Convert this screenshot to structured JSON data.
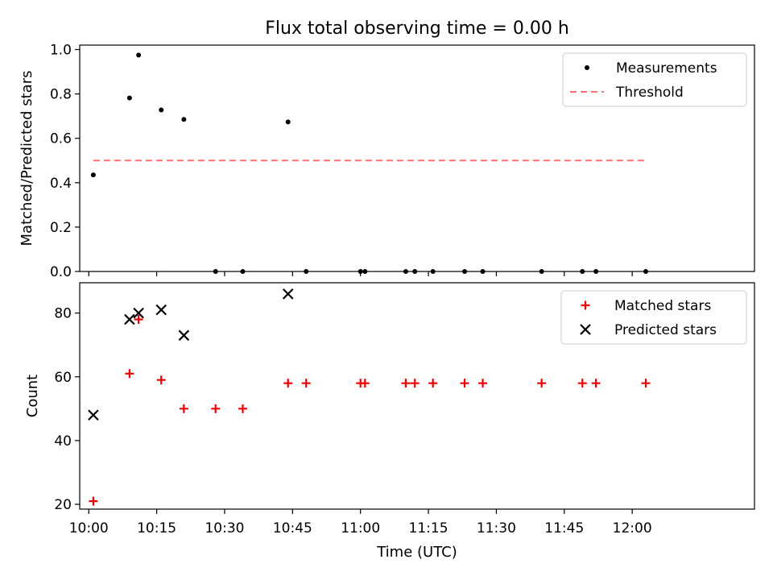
{
  "chart_data": {
    "title": "Flux total observing time = 0.00 h",
    "xlabel": "Time (UTC)",
    "x_ticks": [
      "10:00",
      "10:15",
      "10:30",
      "10:45",
      "11:00",
      "11:15",
      "11:30",
      "11:45",
      "12:00"
    ],
    "xlim": [
      "09:58",
      "12:27"
    ],
    "panels": [
      {
        "type": "scatter",
        "ylabel": "Matched/Predicted stars",
        "ylim": [
          0,
          1.02
        ],
        "y_ticks": [
          "0.0",
          "0.2",
          "0.4",
          "0.6",
          "0.8",
          "1.0"
        ],
        "legend": {
          "position": "top-right",
          "entries": [
            "Measurements",
            "Threshold"
          ]
        },
        "series": [
          {
            "name": "Measurements",
            "type": "scatter",
            "marker": "dot",
            "color": "#000000",
            "points": [
              [
                "10:01",
                0.435
              ],
              [
                "10:09",
                0.782
              ],
              [
                "10:11",
                0.975
              ],
              [
                "10:16",
                0.728
              ],
              [
                "10:21",
                0.685
              ],
              [
                "10:28",
                0.0
              ],
              [
                "10:34",
                0.0
              ],
              [
                "10:44",
                0.674
              ],
              [
                "10:48",
                0.0
              ],
              [
                "11:00",
                0.0
              ],
              [
                "11:01",
                0.0
              ],
              [
                "11:10",
                0.0
              ],
              [
                "11:12",
                0.0
              ],
              [
                "11:16",
                0.0
              ],
              [
                "11:23",
                0.0
              ],
              [
                "11:27",
                0.0
              ],
              [
                "11:40",
                0.0
              ],
              [
                "11:49",
                0.0
              ],
              [
                "11:52",
                0.0
              ],
              [
                "12:03",
                0.0
              ]
            ]
          },
          {
            "name": "Threshold",
            "type": "line",
            "style": "dashed",
            "color": "#ff7070",
            "points": [
              [
                "10:01",
                0.5
              ],
              [
                "12:03",
                0.5
              ]
            ]
          }
        ]
      },
      {
        "type": "scatter",
        "ylabel": "Count",
        "ylim": [
          18.5,
          89.5
        ],
        "y_ticks": [
          "20",
          "40",
          "60",
          "80"
        ],
        "legend": {
          "position": "top-right",
          "entries": [
            "Matched stars",
            "Predicted stars"
          ]
        },
        "series": [
          {
            "name": "Matched stars",
            "type": "scatter",
            "marker": "plus",
            "color": "#ee0000",
            "points": [
              [
                "10:01",
                21
              ],
              [
                "10:09",
                61
              ],
              [
                "10:11",
                78
              ],
              [
                "10:16",
                59
              ],
              [
                "10:21",
                50
              ],
              [
                "10:28",
                50
              ],
              [
                "10:34",
                50
              ],
              [
                "10:44",
                58
              ],
              [
                "10:48",
                58
              ],
              [
                "11:00",
                58
              ],
              [
                "11:01",
                58
              ],
              [
                "11:10",
                58
              ],
              [
                "11:12",
                58
              ],
              [
                "11:16",
                58
              ],
              [
                "11:23",
                58
              ],
              [
                "11:27",
                58
              ],
              [
                "11:40",
                58
              ],
              [
                "11:49",
                58
              ],
              [
                "11:52",
                58
              ],
              [
                "12:03",
                58
              ]
            ]
          },
          {
            "name": "Predicted stars",
            "type": "scatter",
            "marker": "x",
            "color": "#000000",
            "points": [
              [
                "10:01",
                48
              ],
              [
                "10:09",
                78
              ],
              [
                "10:11",
                80
              ],
              [
                "10:16",
                81
              ],
              [
                "10:21",
                73
              ],
              [
                "10:44",
                86
              ]
            ]
          }
        ]
      }
    ]
  }
}
